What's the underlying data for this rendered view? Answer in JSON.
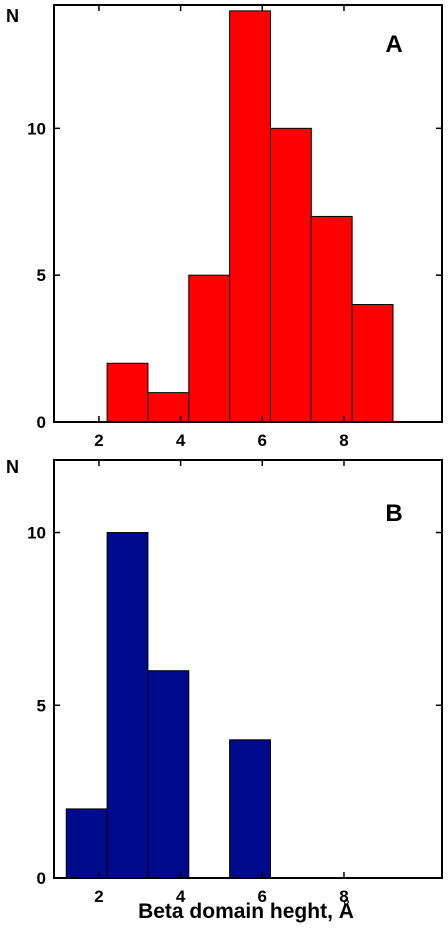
{
  "chart_data": [
    {
      "type": "bar",
      "panel_label": "A",
      "ylabel": "N",
      "xlabel": "",
      "color": "#ff0000",
      "bin_width": 1.0,
      "bins": [
        {
          "start": 2.2,
          "value": 2
        },
        {
          "start": 3.2,
          "value": 1
        },
        {
          "start": 4.2,
          "value": 5
        },
        {
          "start": 5.2,
          "value": 14
        },
        {
          "start": 6.2,
          "value": 10
        },
        {
          "start": 7.2,
          "value": 7
        },
        {
          "start": 8.2,
          "value": 4
        }
      ],
      "xlim": [
        0.9,
        10.4
      ],
      "ylim": [
        0,
        14.2
      ],
      "xticks": [
        {
          "value": 2,
          "label": "2"
        },
        {
          "value": 4,
          "label": "4"
        },
        {
          "value": 6,
          "label": "6"
        },
        {
          "value": 8,
          "label": "8"
        }
      ],
      "yticks": [
        {
          "value": 0,
          "label": "0"
        },
        {
          "value": 5,
          "label": "5"
        },
        {
          "value": 10,
          "label": "10"
        }
      ]
    },
    {
      "type": "bar",
      "panel_label": "B",
      "ylabel": "N",
      "xlabel": "Beta domain heght, Å",
      "color": "#000a8c",
      "bin_width": 1.0,
      "bins": [
        {
          "start": 1.2,
          "value": 2
        },
        {
          "start": 2.2,
          "value": 10
        },
        {
          "start": 3.2,
          "value": 6
        },
        {
          "start": 5.2,
          "value": 4
        }
      ],
      "xlim": [
        0.9,
        10.4
      ],
      "ylim": [
        0,
        12.1
      ],
      "xticks": [
        {
          "value": 2,
          "label": "2"
        },
        {
          "value": 4,
          "label": "4"
        },
        {
          "value": 6,
          "label": "6"
        },
        {
          "value": 8,
          "label": "8"
        }
      ],
      "yticks": [
        {
          "value": 0,
          "label": "0"
        },
        {
          "value": 5,
          "label": "5"
        },
        {
          "value": 10,
          "label": "10"
        }
      ]
    }
  ]
}
